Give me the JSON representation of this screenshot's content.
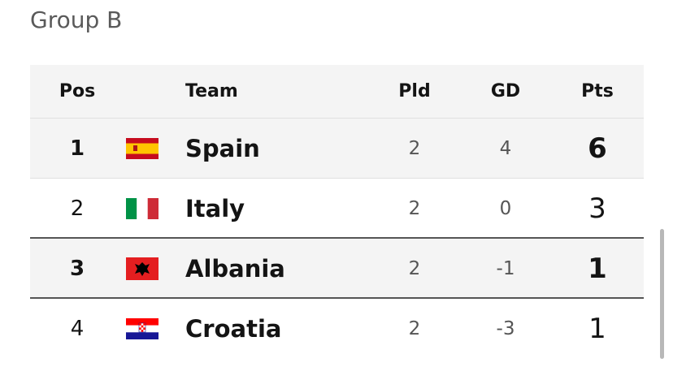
{
  "title": "Group B",
  "table": {
    "header": [
      "Pos",
      "Team",
      "Pld",
      "GD",
      "Pts"
    ],
    "rows": [
      [
        "1",
        "Spain",
        "2",
        "4",
        "6"
      ],
      [
        "2",
        "Italy",
        "2",
        "0",
        "3"
      ],
      [
        "3",
        "Albania",
        "2",
        "-1",
        "1"
      ],
      [
        "4",
        "Croatia",
        "2",
        "-3",
        "1"
      ]
    ]
  }
}
